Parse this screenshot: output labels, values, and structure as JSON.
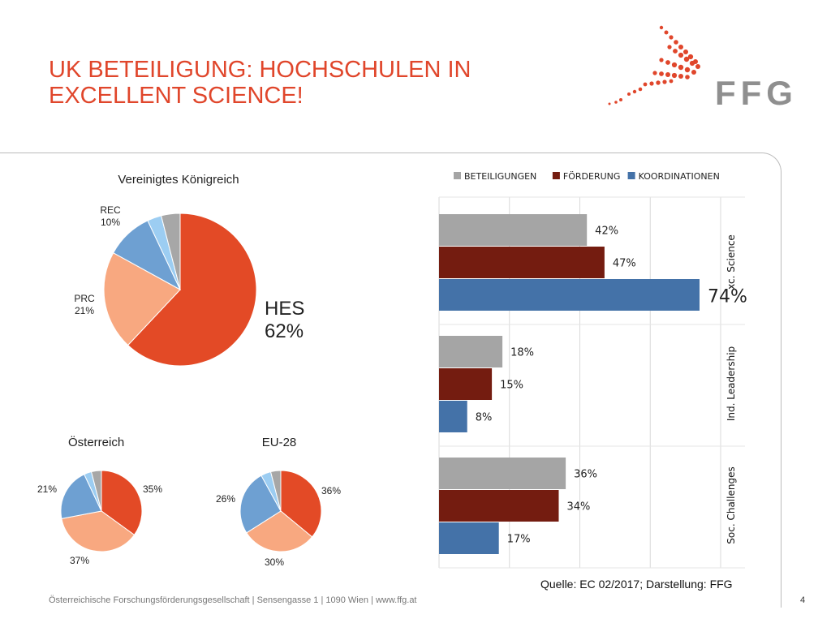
{
  "slide": {
    "title_line1": "UK BETEILIGUNG: HOCHSCHULEN IN",
    "title_line2": "EXCELLENT SCIENCE!",
    "brand": "FFG",
    "footer": "Österreichische Forschungsförderungsgesellschaft | Sensengasse 1 | 1090 Wien | www.ffg.at",
    "page_number": "4",
    "source": "Quelle: EC 02/2017; Darstellung: FFG",
    "accent_color": "#e0462b"
  },
  "chart_data": [
    {
      "type": "pie",
      "title": "Vereinigtes Königreich",
      "slices": [
        {
          "label": "HES",
          "value": 62,
          "value_text": "62%",
          "color": "#e34a26"
        },
        {
          "label": "PRC",
          "value": 21,
          "value_text": "21%",
          "color": "#f8a880"
        },
        {
          "label": "REC",
          "value": 10,
          "value_text": "10%",
          "color": "#6ea0d2"
        },
        {
          "label": "",
          "value": 3,
          "value_text": "",
          "color": "#9ccdf2"
        },
        {
          "label": "",
          "value": 4,
          "value_text": "",
          "color": "#a7a7a7"
        }
      ]
    },
    {
      "type": "pie",
      "title": "Österreich",
      "slices": [
        {
          "label": "",
          "value": 35,
          "value_text": "35%",
          "color": "#e34a26"
        },
        {
          "label": "",
          "value": 37,
          "value_text": "37%",
          "color": "#f8a880"
        },
        {
          "label": "",
          "value": 21,
          "value_text": "21%",
          "color": "#6ea0d2"
        },
        {
          "label": "",
          "value": 3,
          "value_text": "",
          "color": "#9ccdf2"
        },
        {
          "label": "",
          "value": 4,
          "value_text": "",
          "color": "#a7a7a7"
        }
      ]
    },
    {
      "type": "pie",
      "title": "EU-28",
      "slices": [
        {
          "label": "",
          "value": 36,
          "value_text": "36%",
          "color": "#e34a26"
        },
        {
          "label": "",
          "value": 30,
          "value_text": "30%",
          "color": "#f8a880"
        },
        {
          "label": "",
          "value": 26,
          "value_text": "26%",
          "color": "#6ea0d2"
        },
        {
          "label": "",
          "value": 4,
          "value_text": "",
          "color": "#9ccdf2"
        },
        {
          "label": "",
          "value": 4,
          "value_text": "",
          "color": "#a7a7a7"
        }
      ]
    },
    {
      "type": "bar",
      "orientation": "horizontal",
      "categories": [
        "xc. Science",
        "Ind. Leadership",
        "Soc. Challenges"
      ],
      "series": [
        {
          "name": "BETEILIGUNGEN",
          "color": "#a5a5a5",
          "values": [
            42,
            18,
            36
          ],
          "labels": [
            "42%",
            "18%",
            "36%"
          ]
        },
        {
          "name": "FÖRDERUNG",
          "color": "#741c10",
          "values": [
            47,
            15,
            34
          ],
          "labels": [
            "47%",
            "15%",
            "34%"
          ]
        },
        {
          "name": "KOORDINATIONEN",
          "color": "#4472a8",
          "values": [
            74,
            8,
            17
          ],
          "labels": [
            "74%",
            "8%",
            "17%"
          ]
        }
      ],
      "xlim": [
        0,
        80
      ],
      "grid": true,
      "legend": "top"
    }
  ]
}
